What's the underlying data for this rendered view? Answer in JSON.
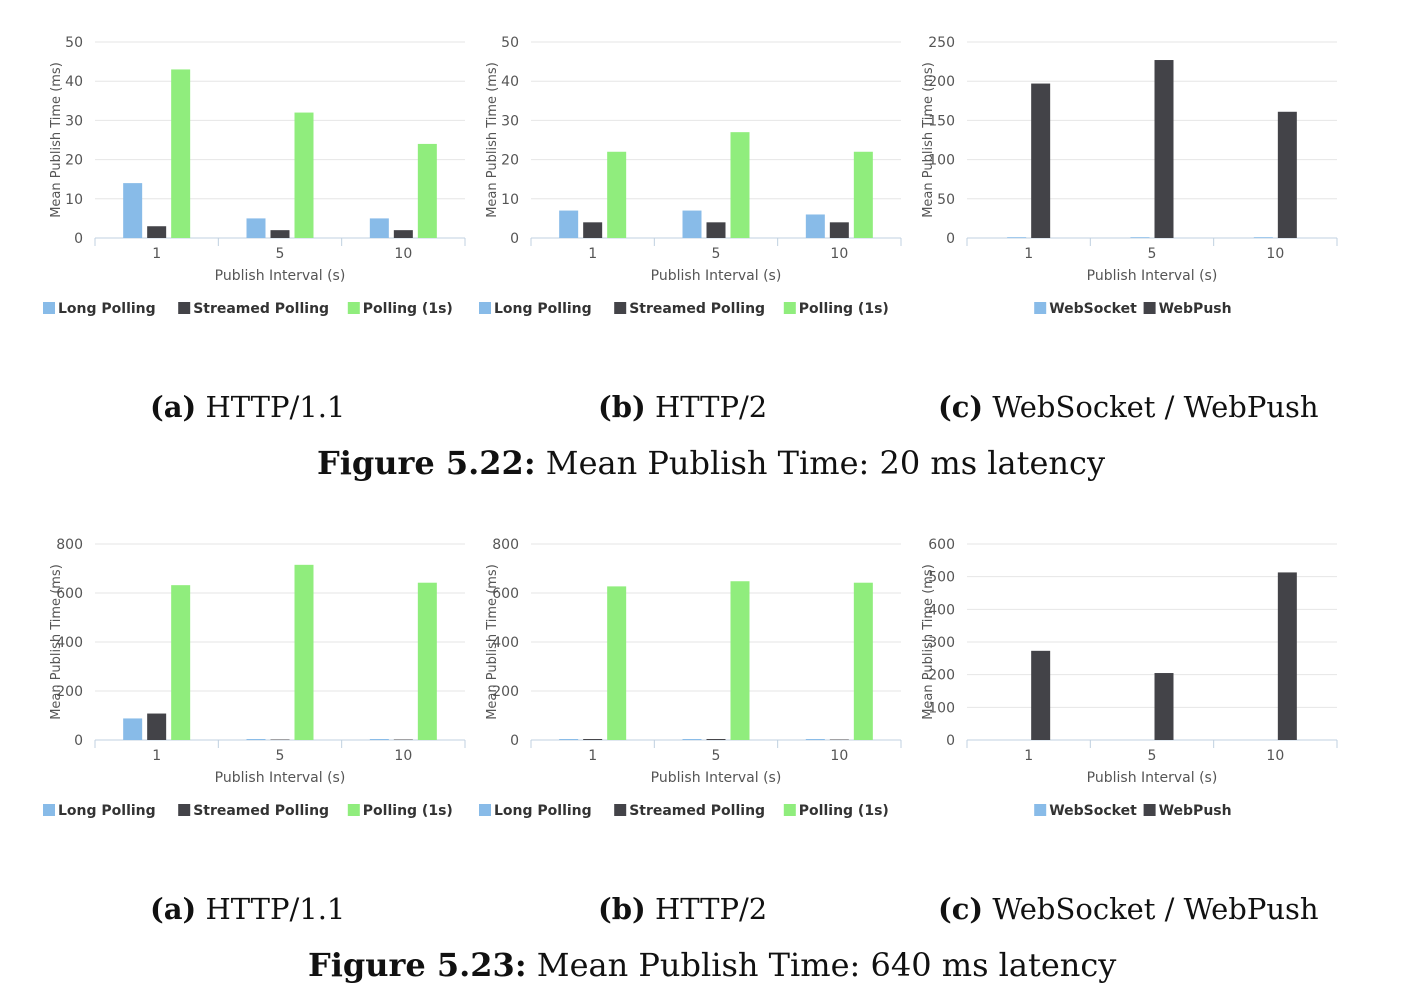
{
  "colors": {
    "long_polling": "#88bbe8",
    "streamed_polling": "#434348",
    "polling_1s": "#90ed7d",
    "websocket": "#88bbe8",
    "webpush": "#434348"
  },
  "figures": [
    {
      "label": "Figure 5.22:",
      "caption": "Mean Publish Time: 20 ms latency",
      "subcaptions": [
        {
          "label": "(a)",
          "text": "HTTP/1.1"
        },
        {
          "label": "(b)",
          "text": "HTTP/2"
        },
        {
          "label": "(c)",
          "text": "WebSocket / WebPush"
        }
      ]
    },
    {
      "label": "Figure 5.23:",
      "caption": "Mean Publish Time: 640 ms latency",
      "subcaptions": [
        {
          "label": "(a)",
          "text": "HTTP/1.1"
        },
        {
          "label": "(b)",
          "text": "HTTP/2"
        },
        {
          "label": "(c)",
          "text": "WebSocket / WebPush"
        }
      ]
    }
  ],
  "chart_data": [
    {
      "type": "bar",
      "categories": [
        "1",
        "5",
        "10"
      ],
      "xlabel": "Publish Interval (s)",
      "ylabel": "Mean Publish Time (ms)",
      "ylim": [
        0,
        50
      ],
      "yticks": [
        "0",
        "10",
        "20",
        "30",
        "40",
        "50"
      ],
      "legend": "bottom",
      "series": [
        {
          "name": "Long Polling",
          "color": "#88bbe8",
          "values": [
            14,
            5,
            5
          ]
        },
        {
          "name": "Streamed Polling",
          "color": "#434348",
          "values": [
            3,
            2,
            2
          ]
        },
        {
          "name": "Polling (1s)",
          "color": "#90ed7d",
          "values": [
            43,
            32,
            24
          ]
        }
      ]
    },
    {
      "type": "bar",
      "categories": [
        "1",
        "5",
        "10"
      ],
      "xlabel": "Publish Interval (s)",
      "ylabel": "Mean Publish Time (ms)",
      "ylim": [
        0,
        50
      ],
      "yticks": [
        "0",
        "10",
        "20",
        "30",
        "40",
        "50"
      ],
      "legend": "bottom",
      "series": [
        {
          "name": "Long Polling",
          "color": "#88bbe8",
          "values": [
            7,
            7,
            6
          ]
        },
        {
          "name": "Streamed Polling",
          "color": "#434348",
          "values": [
            4,
            4,
            4
          ]
        },
        {
          "name": "Polling (1s)",
          "color": "#90ed7d",
          "values": [
            22,
            27,
            22
          ]
        }
      ]
    },
    {
      "type": "bar",
      "categories": [
        "1",
        "5",
        "10"
      ],
      "xlabel": "Publish Interval (s)",
      "ylabel": "Mean Publish Time (ms)",
      "ylim": [
        0,
        250
      ],
      "yticks": [
        "0",
        "50",
        "100",
        "150",
        "200",
        "250"
      ],
      "legend": "bottom",
      "series": [
        {
          "name": "WebSocket",
          "color": "#88bbe8",
          "values": [
            1,
            1,
            1
          ]
        },
        {
          "name": "WebPush",
          "color": "#434348",
          "values": [
            197,
            227,
            161
          ]
        }
      ]
    },
    {
      "type": "bar",
      "categories": [
        "1",
        "5",
        "10"
      ],
      "xlabel": "Publish Interval (s)",
      "ylabel": "Mean Publish Time (ms)",
      "ylim": [
        0,
        800
      ],
      "yticks": [
        "0",
        "200",
        "400",
        "600",
        "800"
      ],
      "legend": "bottom",
      "series": [
        {
          "name": "Long Polling",
          "color": "#88bbe8",
          "values": [
            88,
            4,
            4
          ]
        },
        {
          "name": "Streamed Polling",
          "color": "#434348",
          "values": [
            108,
            2,
            2
          ]
        },
        {
          "name": "Polling (1s)",
          "color": "#90ed7d",
          "values": [
            632,
            715,
            642
          ]
        }
      ]
    },
    {
      "type": "bar",
      "categories": [
        "1",
        "5",
        "10"
      ],
      "xlabel": "Publish Interval (s)",
      "ylabel": "Mean Publish Time (ms)",
      "ylim": [
        0,
        800
      ],
      "yticks": [
        "0",
        "200",
        "400",
        "600",
        "800"
      ],
      "legend": "bottom",
      "series": [
        {
          "name": "Long Polling",
          "color": "#88bbe8",
          "values": [
            4,
            4,
            4
          ]
        },
        {
          "name": "Streamed Polling",
          "color": "#434348",
          "values": [
            4,
            4,
            2
          ]
        },
        {
          "name": "Polling (1s)",
          "color": "#90ed7d",
          "values": [
            627,
            648,
            642
          ]
        }
      ]
    },
    {
      "type": "bar",
      "categories": [
        "1",
        "5",
        "10"
      ],
      "xlabel": "Publish Interval (s)",
      "ylabel": "Mean Publish Time (ms)",
      "ylim": [
        0,
        600
      ],
      "yticks": [
        "0",
        "100",
        "200",
        "300",
        "400",
        "500",
        "600"
      ],
      "legend": "bottom",
      "series": [
        {
          "name": "WebSocket",
          "color": "#88bbe8",
          "values": [
            0,
            0,
            0
          ]
        },
        {
          "name": "WebPush",
          "color": "#434348",
          "values": [
            273,
            205,
            513
          ]
        }
      ]
    }
  ]
}
